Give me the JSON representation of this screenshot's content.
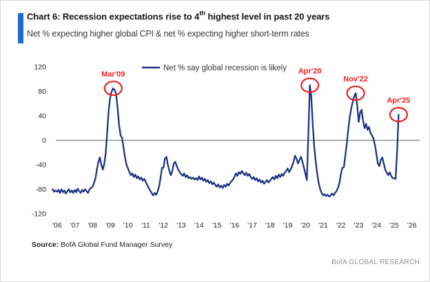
{
  "header": {
    "title_prefix": "Chart 6: Recession expectations rise to 4",
    "title_sup": "th",
    "title_suffix": " highest level in past 20 years",
    "subtitle": "Net % expecting higher global CPI & net % expecting higher short-term rates",
    "accent_color": "#1e6bd7"
  },
  "legend": {
    "label": "Net % say global recession is likely"
  },
  "chart_data": {
    "type": "line",
    "title": "Chart 6: Recession expectations rise to 4th highest level in past 20 years",
    "subtitle": "Net % expecting higher global CPI & net % expecting higher short-term rates",
    "xlabel": "",
    "ylabel": "",
    "ylim": [
      -120,
      120
    ],
    "xlim": [
      2005.7,
      2026.4
    ],
    "grid": false,
    "legend_position": "top-center",
    "y_ticks": [
      120,
      80,
      40,
      0,
      -40,
      -80,
      -120
    ],
    "x_ticks": [
      "'06",
      "'07",
      "'08",
      "'09",
      "'10",
      "'11",
      "'12",
      "'13",
      "'14",
      "'15",
      "'16",
      "'17",
      "'18",
      "'19",
      "'20",
      "'21",
      "'22",
      "'23",
      "'24",
      "'25",
      "'26"
    ],
    "colors": {
      "line": "#1f3181",
      "annotation": "#ee2024",
      "zero_line": "#7f7f7f",
      "tick_text": "#262626"
    },
    "series": [
      {
        "name": "Net % say global recession is likely",
        "color": "#1f3181",
        "start_year": 2005.75,
        "interval_months": 1,
        "values": [
          -80,
          -84,
          -82,
          -84,
          -81,
          -86,
          -80,
          -85,
          -82,
          -87,
          -83,
          -80,
          -85,
          -82,
          -86,
          -81,
          -85,
          -79,
          -83,
          -86,
          -81,
          -84,
          -80,
          -83,
          -86,
          -80,
          -78,
          -76,
          -70,
          -62,
          -48,
          -35,
          -28,
          -40,
          -48,
          -38,
          -20,
          15,
          50,
          70,
          80,
          85,
          82,
          76,
          52,
          25,
          8,
          4,
          -12,
          -28,
          -40,
          -46,
          -52,
          -57,
          -54,
          -60,
          -56,
          -62,
          -59,
          -64,
          -61,
          -66,
          -63,
          -68,
          -73,
          -78,
          -82,
          -86,
          -90,
          -86,
          -89,
          -84,
          -76,
          -62,
          -45,
          -45,
          -30,
          -27,
          -40,
          -50,
          -57,
          -50,
          -38,
          -35,
          -42,
          -48,
          -52,
          -55,
          -58,
          -54,
          -60,
          -57,
          -62,
          -60,
          -63,
          -61,
          -64,
          -62,
          -65,
          -59,
          -64,
          -61,
          -66,
          -63,
          -68,
          -65,
          -70,
          -67,
          -72,
          -69,
          -73,
          -76,
          -72,
          -77,
          -74,
          -78,
          -73,
          -76,
          -71,
          -74,
          -70,
          -67,
          -64,
          -60,
          -54,
          -58,
          -52,
          -55,
          -50,
          -54,
          -57,
          -53,
          -58,
          -55,
          -60,
          -63,
          -60,
          -65,
          -62,
          -67,
          -64,
          -69,
          -66,
          -71,
          -68,
          -65,
          -69,
          -66,
          -63,
          -60,
          -64,
          -58,
          -62,
          -56,
          -60,
          -55,
          -58,
          -53,
          -50,
          -46,
          -52,
          -48,
          -42,
          -35,
          -25,
          -30,
          -38,
          -32,
          -27,
          -35,
          -45,
          -55,
          -65,
          10,
          90,
          70,
          25,
          -12,
          -35,
          -55,
          -70,
          -80,
          -86,
          -90,
          -88,
          -91,
          -89,
          -92,
          -90,
          -87,
          -90,
          -86,
          -83,
          -78,
          -70,
          -55,
          -45,
          -44,
          -25,
          -5,
          18,
          38,
          52,
          63,
          72,
          77,
          58,
          30,
          45,
          50,
          32,
          20,
          27,
          17,
          22,
          12,
          8,
          3,
          -8,
          -22,
          -38,
          -42,
          -32,
          -28,
          -38,
          -48,
          -53,
          -57,
          -52,
          -58,
          -62,
          -62,
          -63,
          -20,
          42
        ]
      }
    ],
    "annotations": [
      {
        "label": "Mar'09",
        "x": 2009.17,
        "y": 85
      },
      {
        "label": "Apr'20",
        "x": 2020.25,
        "y": 90
      },
      {
        "label": "Nov'22",
        "x": 2022.83,
        "y": 77
      },
      {
        "label": "Apr'25",
        "x": 2025.25,
        "y": 42
      }
    ]
  },
  "footer": {
    "source_label": "Source:",
    "source_text": " BofA Global Fund Manager Survey",
    "brand": "BofA GLOBAL RESEARCH"
  }
}
